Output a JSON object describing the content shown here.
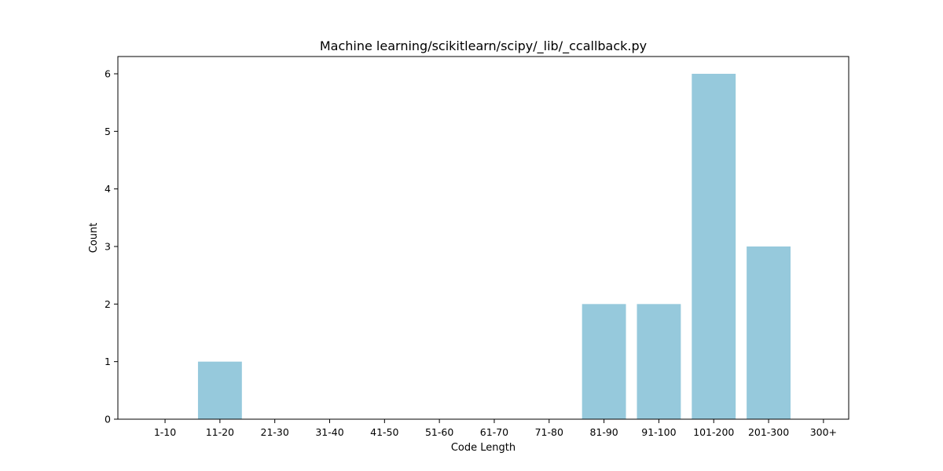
{
  "chart_data": {
    "type": "bar",
    "title": "Machine learning/scikitlearn/scipy/_lib/_ccallback.py",
    "xlabel": "Code Length",
    "ylabel": "Count",
    "categories": [
      "1-10",
      "11-20",
      "21-30",
      "31-40",
      "41-50",
      "51-60",
      "61-70",
      "71-80",
      "81-90",
      "91-100",
      "101-200",
      "201-300",
      "300+"
    ],
    "values": [
      0,
      1,
      0,
      0,
      0,
      0,
      0,
      0,
      2,
      2,
      6,
      3,
      0
    ],
    "ylim": [
      0,
      6.3
    ],
    "yticks": [
      "0",
      "1",
      "2",
      "3",
      "4",
      "5",
      "6"
    ],
    "bar_color": "#96c9dc",
    "grid": false
  }
}
